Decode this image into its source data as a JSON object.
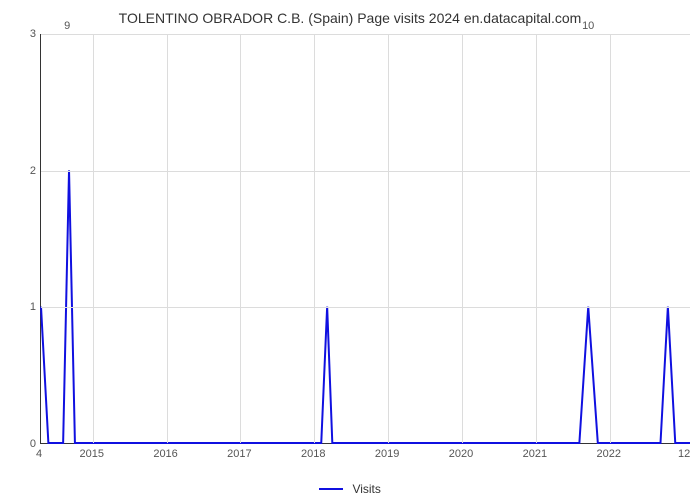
{
  "chart": {
    "type": "line",
    "title": "TOLENTINO OBRADOR C.B. (Spain) Page visits 2024 en.datacapital.com",
    "title_fontsize": 14,
    "background_color": "#ffffff",
    "grid_color": "#dcdcdc",
    "axis_color": "#333333",
    "x": {
      "min": 2014.3,
      "max": 2023.1,
      "tick_start": 2015,
      "tick_end": 2022,
      "tick_step": 1,
      "label_fontsize": 11,
      "corner_left_label": "4",
      "corner_right_label": "12"
    },
    "y": {
      "min": 0,
      "max": 3,
      "tick_start": 0,
      "tick_end": 3,
      "tick_step": 1,
      "label_fontsize": 11,
      "corner_left_label": "9",
      "corner_right_label": "10"
    },
    "series": [
      {
        "name": "Visits",
        "color": "#1010e0",
        "line_width": 2,
        "points": [
          [
            2014.3,
            1.0
          ],
          [
            2014.4,
            0.0
          ],
          [
            2014.6,
            0.0
          ],
          [
            2014.68,
            2.0
          ],
          [
            2014.76,
            0.0
          ],
          [
            2018.1,
            0.0
          ],
          [
            2018.18,
            1.0
          ],
          [
            2018.25,
            0.0
          ],
          [
            2021.6,
            0.0
          ],
          [
            2021.72,
            1.0
          ],
          [
            2021.85,
            0.0
          ],
          [
            2022.7,
            0.0
          ],
          [
            2022.8,
            1.0
          ],
          [
            2022.9,
            0.0
          ],
          [
            2023.1,
            0.0
          ]
        ]
      }
    ],
    "legend": {
      "position": "bottom",
      "label": "Visits",
      "fontsize": 12
    }
  }
}
